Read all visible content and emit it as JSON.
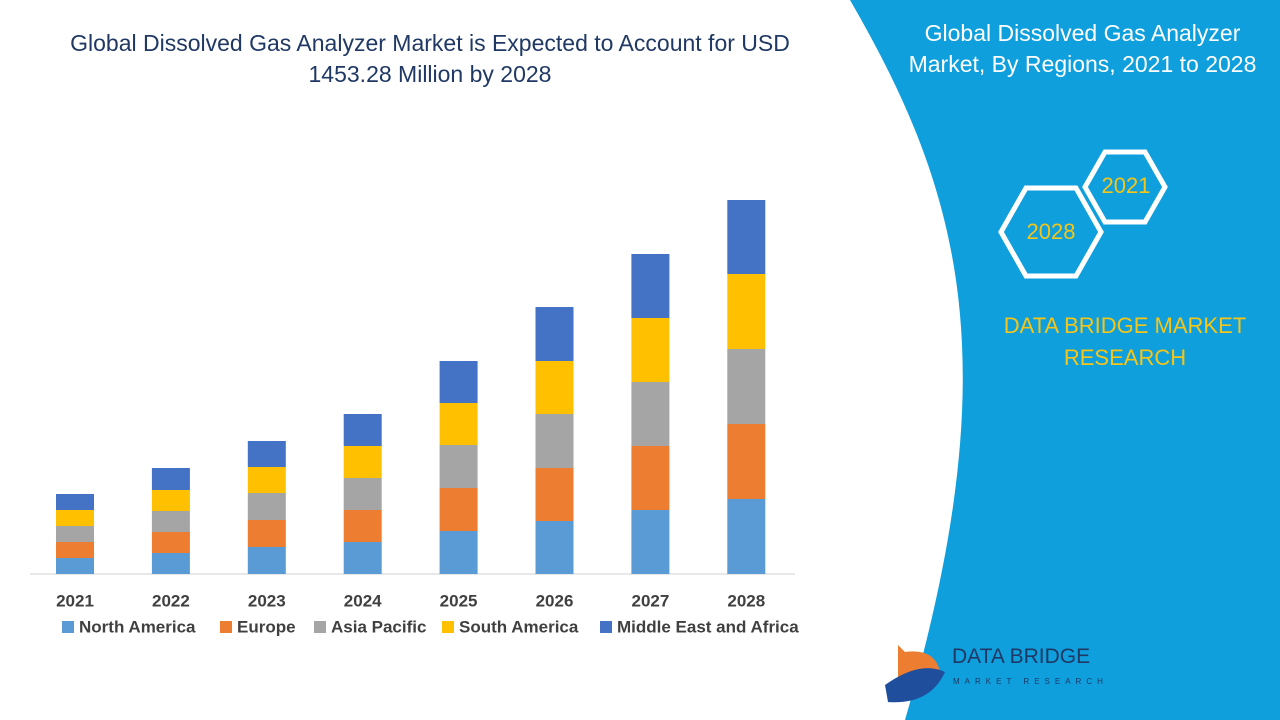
{
  "chart_data": {
    "type": "stacked-bar",
    "title": "Global Dissolved Gas Analyzer Market is Expected to Account for USD 1453.28 Million by 2028",
    "categories": [
      "2021",
      "2022",
      "2023",
      "2024",
      "2025",
      "2026",
      "2027",
      "2028"
    ],
    "series": [
      {
        "name": "North America",
        "color": "#5b9bd5",
        "values": [
          16,
          21,
          27,
          32,
          43,
          53,
          64,
          75
        ]
      },
      {
        "name": "Europe",
        "color": "#ed7d31",
        "values": [
          16,
          21,
          27,
          32,
          43,
          53,
          64,
          75
        ]
      },
      {
        "name": "Asia Pacific",
        "color": "#a5a5a5",
        "values": [
          16,
          21,
          27,
          32,
          43,
          54,
          64,
          75
        ]
      },
      {
        "name": "South America",
        "color": "#ffc000",
        "values": [
          16,
          21,
          26,
          32,
          42,
          53,
          64,
          75
        ]
      },
      {
        "name": "Middle East and Africa",
        "color": "#4472c4",
        "values": [
          16,
          22,
          26,
          32,
          42,
          54,
          64,
          74
        ]
      }
    ],
    "legend": "bottom"
  },
  "panel": {
    "title": "Global Dissolved Gas Analyzer Market, By Regions, 2021 to 2028",
    "hexagons": [
      "2021",
      "2028"
    ],
    "brand": "DATA BRIDGE MARKET RESEARCH"
  },
  "logo": {
    "name": "DATA BRIDGE",
    "tagline": "MARKET RESEARCH"
  }
}
